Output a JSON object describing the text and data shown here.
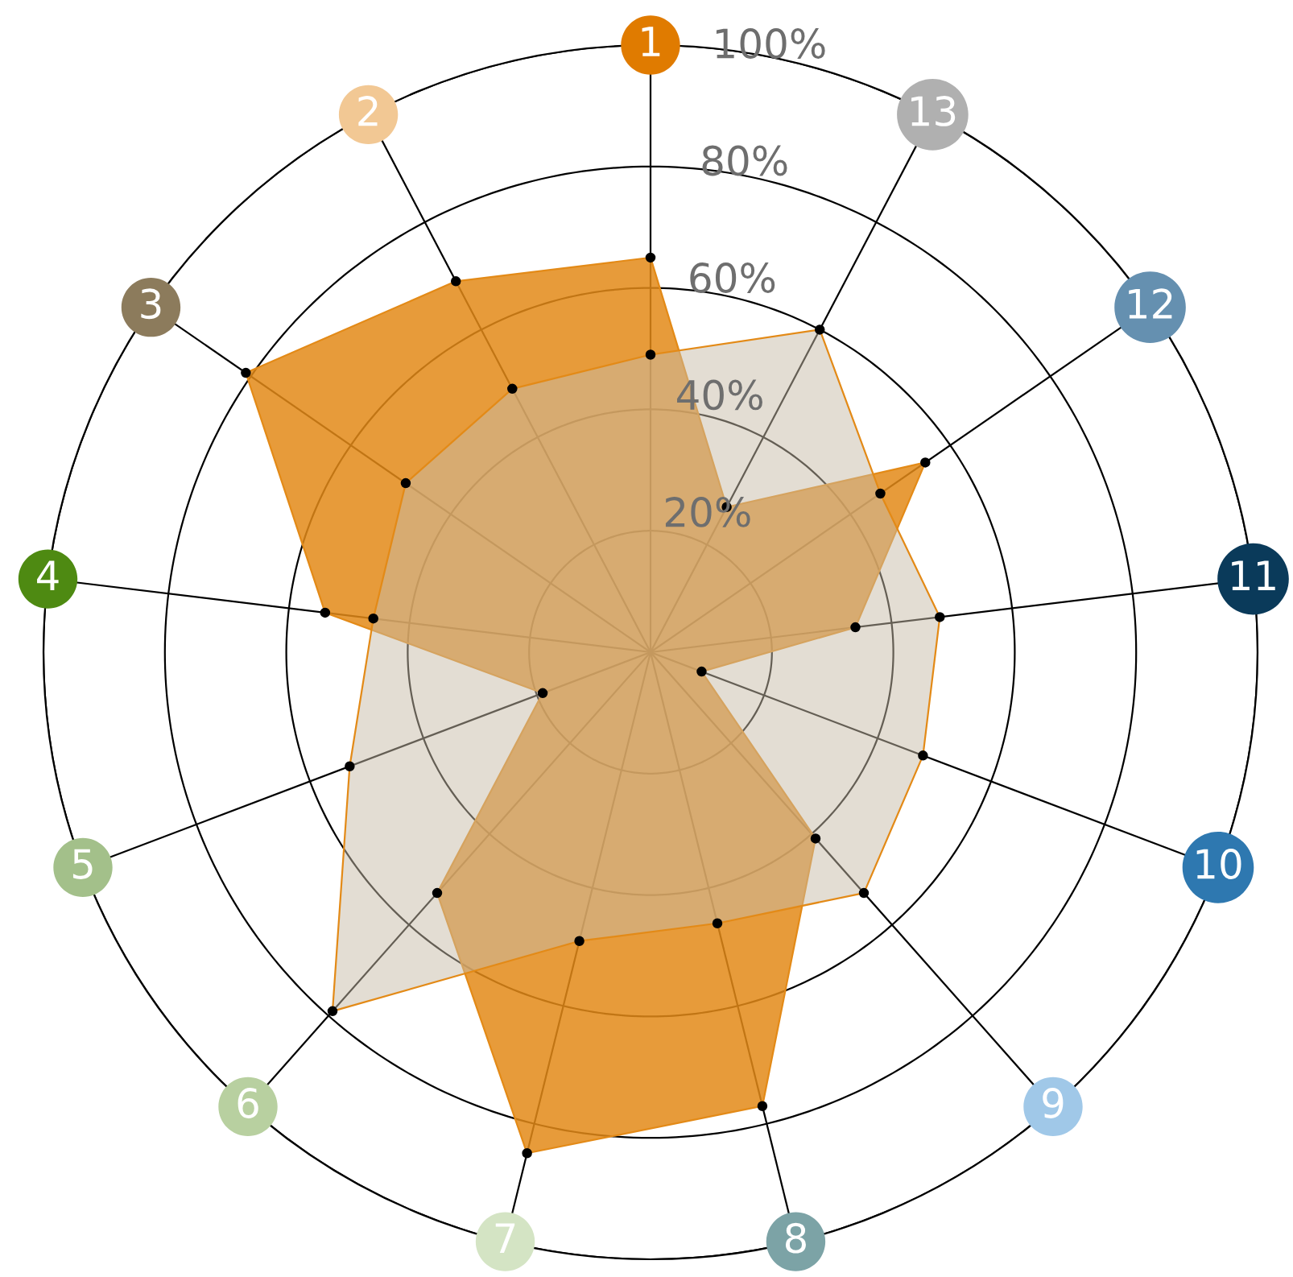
{
  "chart_data": {
    "type": "radar",
    "categories": [
      "1",
      "13",
      "12",
      "11",
      "10",
      "9",
      "8",
      "7",
      "6",
      "5",
      "4",
      "3",
      "2"
    ],
    "colors": [
      "#e07b00",
      "#b0b0b0",
      "#6590b0",
      "#0a3a5a",
      "#2e78b0",
      "#a0c8e8",
      "#7ca3a6",
      "#d4e4c4",
      "#b8d0a0",
      "#a3c08a",
      "#4e8a12",
      "#8c7b5c",
      "#f2c894"
    ],
    "series": [
      {
        "color": "#e38a17",
        "values": [
          65,
          27,
          55,
          34,
          9,
          41,
          77,
          85,
          53,
          19,
          54,
          81,
          69
        ]
      },
      {
        "color": "#c8bca8",
        "values": [
          49,
          60,
          46,
          48,
          48,
          53,
          46,
          49,
          79,
          53,
          46,
          49,
          49
        ]
      }
    ],
    "ylim": [
      0,
      100
    ],
    "yticks": [
      {
        "value": 20,
        "label": "20%"
      },
      {
        "value": 40,
        "label": "40%"
      },
      {
        "value": 60,
        "label": "60%"
      },
      {
        "value": 80,
        "label": "80%"
      },
      {
        "value": 100,
        "label": "100%"
      }
    ],
    "grid": true,
    "marker": "circle",
    "legend": false
  }
}
